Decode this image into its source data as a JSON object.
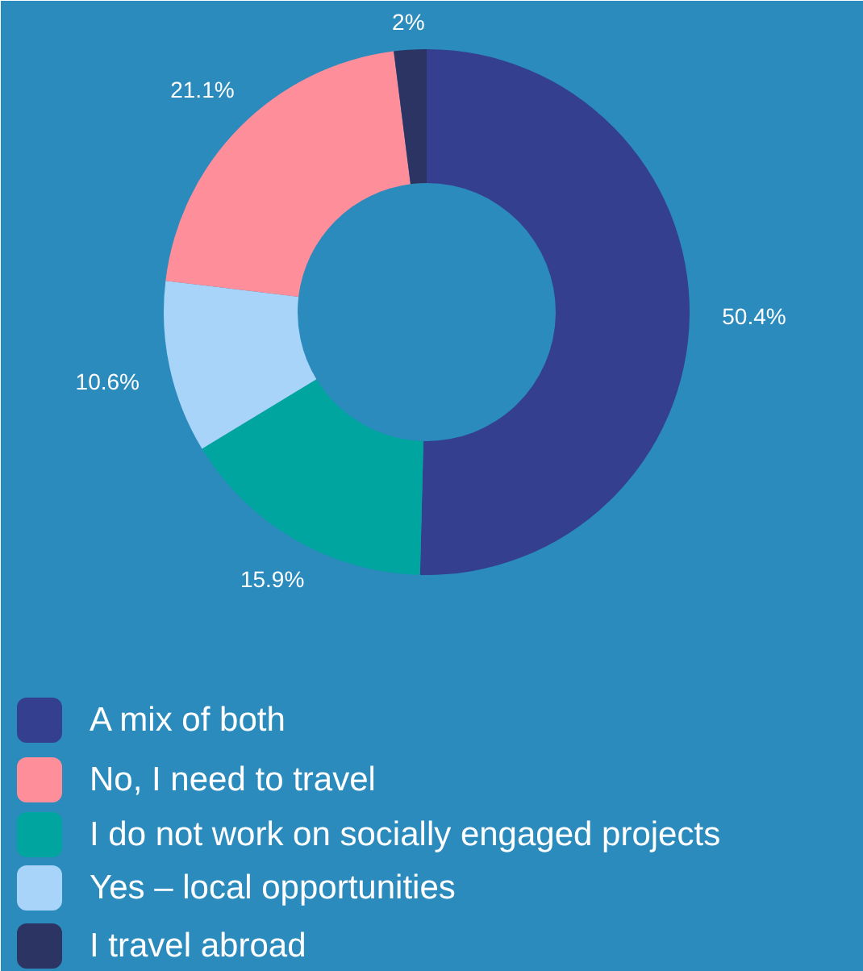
{
  "chart_data": {
    "type": "donut",
    "categories": [
      "A mix of both",
      "I do not work on socially engaged projects",
      "Yes – local opportunities",
      "No, I need to travel",
      "I travel abroad"
    ],
    "values": [
      50.4,
      15.9,
      10.6,
      21.1,
      2
    ],
    "colors": [
      "#343f8f",
      "#00a59f",
      "#a9d4f9",
      "#ff8e9b",
      "#2b3462"
    ],
    "value_labels": [
      "50.4%",
      "15.9%",
      "10.6%",
      "21.1%",
      "2%"
    ],
    "legend": "bottom"
  }
}
